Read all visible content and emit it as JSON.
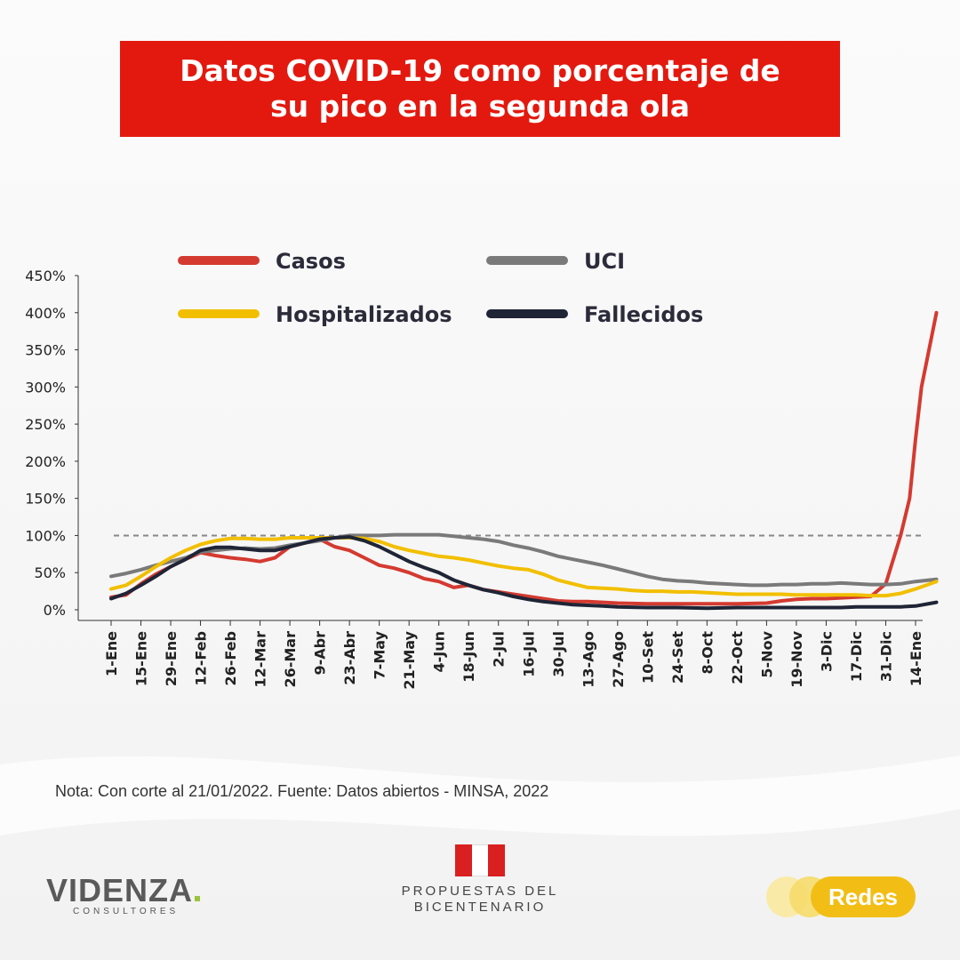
{
  "title": "Datos COVID-19 como porcentaje de su pico en la segunda ola",
  "note": "Nota: Con corte al 21/01/2022.  Fuente: Datos abiertos - MINSA, 2022",
  "logos": {
    "videnza": "VIDENZA",
    "videnza_sub": "CONSULTORES",
    "propuestas_line1": "PROPUESTAS DEL",
    "propuestas_line2": "BICENTENARIO",
    "redes": "Redes"
  },
  "colors": {
    "title_bg": "#e3190f",
    "casos": "#d43a30",
    "uci": "#7a7a7a",
    "hospitalizados": "#f2bf00",
    "fallecidos": "#1f2536"
  },
  "chart_data": {
    "type": "line",
    "ylim": [
      0,
      450
    ],
    "yticks": [
      0,
      50,
      100,
      150,
      200,
      250,
      300,
      350,
      400,
      450
    ],
    "ytick_labels": [
      "0%",
      "50%",
      "100%",
      "150%",
      "200%",
      "250%",
      "300%",
      "350%",
      "400%",
      "450%"
    ],
    "reference_line": 100,
    "legend_position": "top",
    "grid": false,
    "categories": [
      "1-Ene",
      "15-Ene",
      "29-Ene",
      "12-Feb",
      "26-Feb",
      "12-Mar",
      "26-Mar",
      "9-Abr",
      "23-Abr",
      "7-May",
      "21-May",
      "4-Jun",
      "18-Jun",
      "2-Jul",
      "16-Jul",
      "30-Jul",
      "13-Ago",
      "27-Ago",
      "10-Set",
      "24-Set",
      "8-Oct",
      "22-Oct",
      "5-Nov",
      "19-Nov",
      "3-Dic",
      "17-Dic",
      "31-Dic",
      "14-Ene"
    ],
    "series": [
      {
        "name": "Casos",
        "key": "casos",
        "values": [
          [
            0,
            17
          ],
          [
            0.5,
            20
          ],
          [
            1,
            35
          ],
          [
            1.5,
            48
          ],
          [
            2,
            58
          ],
          [
            2.5,
            68
          ],
          [
            3,
            77
          ],
          [
            3.5,
            73
          ],
          [
            4,
            70
          ],
          [
            4.5,
            68
          ],
          [
            5,
            65
          ],
          [
            5.5,
            70
          ],
          [
            6,
            85
          ],
          [
            6.5,
            90
          ],
          [
            7,
            95
          ],
          [
            7.5,
            85
          ],
          [
            8,
            80
          ],
          [
            8.5,
            70
          ],
          [
            9,
            60
          ],
          [
            9.5,
            56
          ],
          [
            10,
            50
          ],
          [
            10.5,
            42
          ],
          [
            11,
            38
          ],
          [
            11.5,
            30
          ],
          [
            12,
            33
          ],
          [
            12.5,
            27
          ],
          [
            13,
            24
          ],
          [
            13.5,
            21
          ],
          [
            14,
            18
          ],
          [
            14.5,
            15
          ],
          [
            15,
            12
          ],
          [
            15.5,
            11
          ],
          [
            16,
            11
          ],
          [
            16.5,
            10
          ],
          [
            17,
            9
          ],
          [
            18,
            8
          ],
          [
            19,
            8
          ],
          [
            20,
            8
          ],
          [
            21,
            8
          ],
          [
            22,
            9
          ],
          [
            22.5,
            12
          ],
          [
            23,
            14
          ],
          [
            23.5,
            15
          ],
          [
            24,
            15
          ],
          [
            24.5,
            16
          ],
          [
            25,
            17
          ],
          [
            25.5,
            18
          ],
          [
            26,
            35
          ],
          [
            26.5,
            100
          ],
          [
            26.8,
            150
          ],
          [
            27,
            230
          ],
          [
            27.2,
            300
          ],
          [
            27.5,
            360
          ],
          [
            27.7,
            400
          ]
        ]
      },
      {
        "name": "UCI",
        "key": "uci",
        "values": [
          [
            0,
            45
          ],
          [
            0.5,
            49
          ],
          [
            1,
            54
          ],
          [
            1.5,
            60
          ],
          [
            2,
            65
          ],
          [
            2.5,
            70
          ],
          [
            3,
            78
          ],
          [
            3.5,
            80
          ],
          [
            4,
            82
          ],
          [
            4.5,
            83
          ],
          [
            5,
            82
          ],
          [
            5.5,
            83
          ],
          [
            6,
            87
          ],
          [
            6.5,
            90
          ],
          [
            7,
            93
          ],
          [
            7.5,
            97
          ],
          [
            8,
            100
          ],
          [
            8.5,
            100
          ],
          [
            9,
            100
          ],
          [
            9.5,
            101
          ],
          [
            10,
            101
          ],
          [
            10.5,
            101
          ],
          [
            11,
            101
          ],
          [
            11.5,
            99
          ],
          [
            12,
            97
          ],
          [
            12.5,
            95
          ],
          [
            13,
            92
          ],
          [
            13.5,
            87
          ],
          [
            14,
            83
          ],
          [
            14.5,
            78
          ],
          [
            15,
            72
          ],
          [
            15.5,
            68
          ],
          [
            16,
            64
          ],
          [
            16.5,
            60
          ],
          [
            17,
            55
          ],
          [
            17.5,
            50
          ],
          [
            18,
            45
          ],
          [
            18.5,
            41
          ],
          [
            19,
            39
          ],
          [
            19.5,
            38
          ],
          [
            20,
            36
          ],
          [
            20.5,
            35
          ],
          [
            21,
            34
          ],
          [
            21.5,
            33
          ],
          [
            22,
            33
          ],
          [
            22.5,
            34
          ],
          [
            23,
            34
          ],
          [
            23.5,
            35
          ],
          [
            24,
            35
          ],
          [
            24.5,
            36
          ],
          [
            25,
            35
          ],
          [
            25.5,
            34
          ],
          [
            26,
            34
          ],
          [
            26.5,
            35
          ],
          [
            27,
            38
          ],
          [
            27.7,
            41
          ]
        ]
      },
      {
        "name": "Hospitalizados",
        "key": "hospitalizados",
        "values": [
          [
            0,
            28
          ],
          [
            0.5,
            33
          ],
          [
            1,
            45
          ],
          [
            1.5,
            58
          ],
          [
            2,
            70
          ],
          [
            2.5,
            80
          ],
          [
            3,
            88
          ],
          [
            3.5,
            93
          ],
          [
            4,
            96
          ],
          [
            4.5,
            96
          ],
          [
            5,
            95
          ],
          [
            5.5,
            95
          ],
          [
            6,
            97
          ],
          [
            6.5,
            97
          ],
          [
            7,
            97
          ],
          [
            7.5,
            97
          ],
          [
            8,
            97
          ],
          [
            8.5,
            96
          ],
          [
            9,
            92
          ],
          [
            9.5,
            85
          ],
          [
            10,
            80
          ],
          [
            10.5,
            76
          ],
          [
            11,
            72
          ],
          [
            11.5,
            70
          ],
          [
            12,
            67
          ],
          [
            12.5,
            63
          ],
          [
            13,
            59
          ],
          [
            13.5,
            56
          ],
          [
            14,
            54
          ],
          [
            14.5,
            48
          ],
          [
            15,
            40
          ],
          [
            15.5,
            35
          ],
          [
            16,
            30
          ],
          [
            16.5,
            29
          ],
          [
            17,
            28
          ],
          [
            17.5,
            26
          ],
          [
            18,
            25
          ],
          [
            18.5,
            25
          ],
          [
            19,
            24
          ],
          [
            19.5,
            24
          ],
          [
            20,
            23
          ],
          [
            20.5,
            22
          ],
          [
            21,
            21
          ],
          [
            21.5,
            21
          ],
          [
            22,
            21
          ],
          [
            22.5,
            21
          ],
          [
            23,
            20
          ],
          [
            23.5,
            20
          ],
          [
            24,
            20
          ],
          [
            24.5,
            20
          ],
          [
            25,
            20
          ],
          [
            25.5,
            19
          ],
          [
            26,
            19
          ],
          [
            26.5,
            22
          ],
          [
            27,
            28
          ],
          [
            27.7,
            38
          ]
        ]
      },
      {
        "name": "Fallecidos",
        "key": "fallecidos",
        "values": [
          [
            0,
            15
          ],
          [
            0.5,
            22
          ],
          [
            1,
            33
          ],
          [
            1.5,
            45
          ],
          [
            2,
            58
          ],
          [
            2.5,
            68
          ],
          [
            3,
            80
          ],
          [
            3.5,
            84
          ],
          [
            4,
            84
          ],
          [
            4.5,
            82
          ],
          [
            5,
            80
          ],
          [
            5.5,
            80
          ],
          [
            6,
            85
          ],
          [
            6.5,
            90
          ],
          [
            7,
            95
          ],
          [
            7.5,
            97
          ],
          [
            8,
            98
          ],
          [
            8.5,
            93
          ],
          [
            9,
            85
          ],
          [
            9.5,
            75
          ],
          [
            10,
            65
          ],
          [
            10.5,
            57
          ],
          [
            11,
            50
          ],
          [
            11.5,
            40
          ],
          [
            12,
            33
          ],
          [
            12.5,
            27
          ],
          [
            13,
            23
          ],
          [
            13.5,
            18
          ],
          [
            14,
            14
          ],
          [
            14.5,
            11
          ],
          [
            15,
            9
          ],
          [
            15.5,
            7
          ],
          [
            16,
            6
          ],
          [
            16.5,
            5
          ],
          [
            17,
            4
          ],
          [
            18,
            3
          ],
          [
            19,
            3
          ],
          [
            20,
            2
          ],
          [
            21,
            3
          ],
          [
            22,
            3
          ],
          [
            22.5,
            3
          ],
          [
            23,
            3
          ],
          [
            23.5,
            3
          ],
          [
            24,
            3
          ],
          [
            24.5,
            3
          ],
          [
            25,
            4
          ],
          [
            25.5,
            4
          ],
          [
            26,
            4
          ],
          [
            26.5,
            4
          ],
          [
            27,
            5
          ],
          [
            27.7,
            10
          ]
        ]
      }
    ]
  }
}
